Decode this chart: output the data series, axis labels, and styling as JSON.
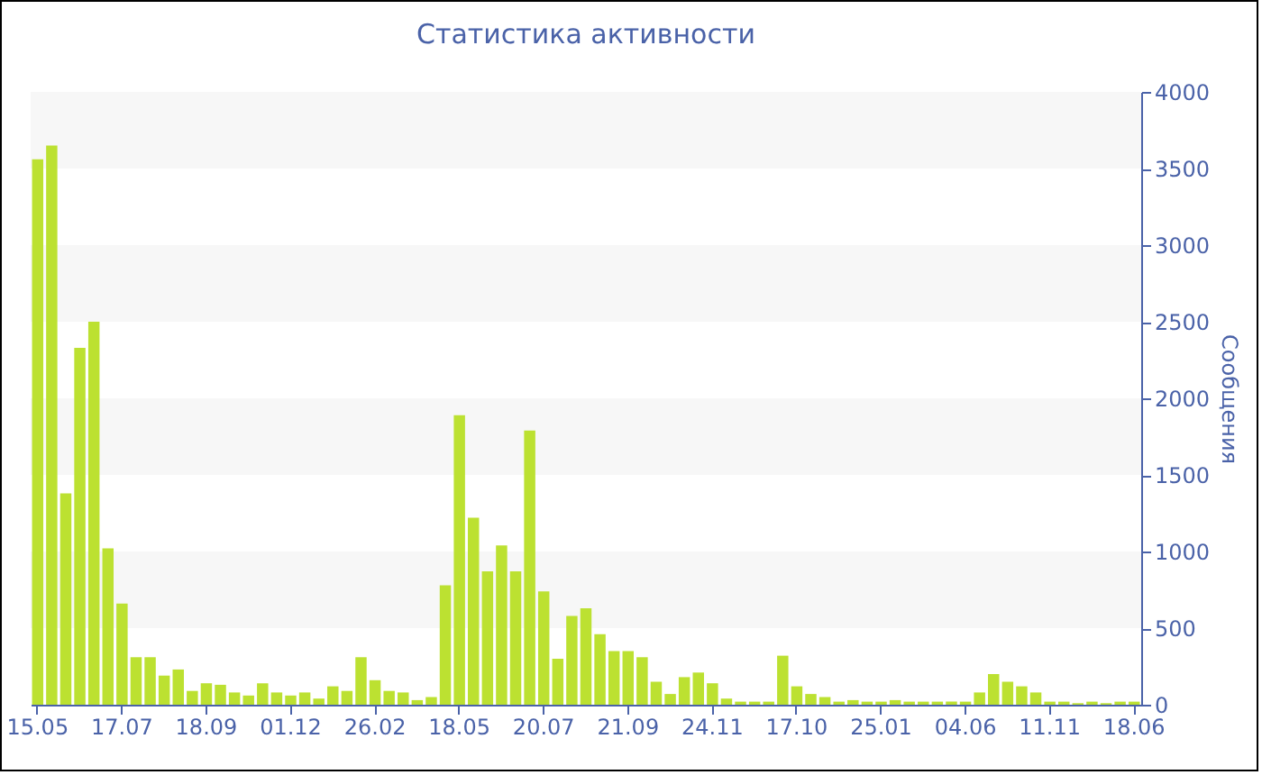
{
  "chart_data": {
    "type": "bar",
    "title": "Статистика активности",
    "ylabel": "Сообщения",
    "categories": [
      "15.05",
      null,
      null,
      null,
      null,
      null,
      "17.07",
      null,
      null,
      null,
      null,
      null,
      "18.09",
      null,
      null,
      null,
      null,
      null,
      "01.12",
      null,
      null,
      null,
      null,
      null,
      "26.02",
      null,
      null,
      null,
      null,
      null,
      "18.05",
      null,
      null,
      null,
      null,
      null,
      "20.07",
      null,
      null,
      null,
      null,
      null,
      "21.09",
      null,
      null,
      null,
      null,
      null,
      "24.11",
      null,
      null,
      null,
      null,
      null,
      "17.10",
      null,
      null,
      null,
      null,
      null,
      "25.01",
      null,
      null,
      null,
      null,
      null,
      "04.06",
      null,
      null,
      null,
      null,
      null,
      "11.11",
      null,
      null,
      null,
      null,
      null,
      "18.06"
    ],
    "values": [
      3560,
      3650,
      1380,
      2330,
      2500,
      1020,
      660,
      310,
      310,
      190,
      230,
      90,
      140,
      130,
      80,
      60,
      140,
      80,
      60,
      80,
      40,
      120,
      90,
      310,
      160,
      90,
      80,
      30,
      50,
      780,
      1890,
      1220,
      870,
      1040,
      870,
      1790,
      740,
      300,
      580,
      630,
      460,
      350,
      350,
      310,
      150,
      70,
      180,
      210,
      140,
      40,
      20,
      20,
      20,
      320,
      120,
      70,
      50,
      20,
      30,
      20,
      20,
      30,
      20,
      20,
      20,
      20,
      20,
      80,
      200,
      150,
      120,
      80,
      20,
      20,
      10,
      20,
      10,
      20,
      20
    ],
    "color": "#bce131",
    "ylim": [
      0,
      4000
    ],
    "yticks": [
      0,
      500,
      1000,
      1500,
      2000,
      2500,
      3000,
      3500,
      4000
    ],
    "bands": [
      {
        "axis": "y",
        "from": 500,
        "to": 1000,
        "color": "#f7f7f7"
      },
      {
        "axis": "y",
        "from": 1500,
        "to": 2000,
        "color": "#f7f7f7"
      },
      {
        "axis": "y",
        "from": 2500,
        "to": 3000,
        "color": "#f7f7f7"
      },
      {
        "axis": "y",
        "from": 3500,
        "to": 4000,
        "color": "#f7f7f7"
      }
    ]
  }
}
